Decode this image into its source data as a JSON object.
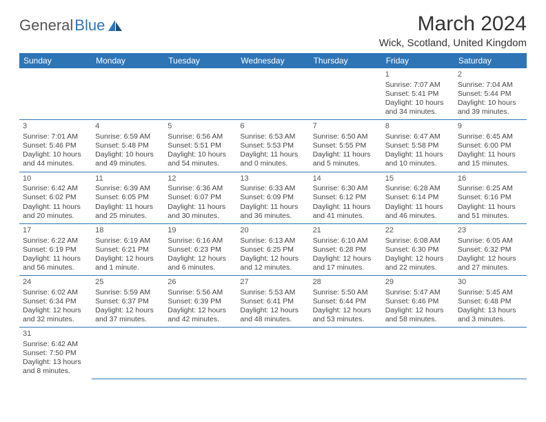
{
  "logo": {
    "gray": "General",
    "blue": "Blue"
  },
  "title": "March 2024",
  "location": "Wick, Scotland, United Kingdom",
  "colors": {
    "header_bg": "#2e75b6",
    "header_text": "#ffffff",
    "border": "#2e75b6",
    "text": "#444444",
    "brand_gray": "#555555",
    "brand_blue": "#2e75b6",
    "background": "#ffffff"
  },
  "dayHeaders": [
    "Sunday",
    "Monday",
    "Tuesday",
    "Wednesday",
    "Thursday",
    "Friday",
    "Saturday"
  ],
  "weeks": [
    [
      null,
      null,
      null,
      null,
      null,
      {
        "n": "1",
        "sr": "Sunrise: 7:07 AM",
        "ss": "Sunset: 5:41 PM",
        "dl1": "Daylight: 10 hours",
        "dl2": "and 34 minutes."
      },
      {
        "n": "2",
        "sr": "Sunrise: 7:04 AM",
        "ss": "Sunset: 5:44 PM",
        "dl1": "Daylight: 10 hours",
        "dl2": "and 39 minutes."
      }
    ],
    [
      {
        "n": "3",
        "sr": "Sunrise: 7:01 AM",
        "ss": "Sunset: 5:46 PM",
        "dl1": "Daylight: 10 hours",
        "dl2": "and 44 minutes."
      },
      {
        "n": "4",
        "sr": "Sunrise: 6:59 AM",
        "ss": "Sunset: 5:48 PM",
        "dl1": "Daylight: 10 hours",
        "dl2": "and 49 minutes."
      },
      {
        "n": "5",
        "sr": "Sunrise: 6:56 AM",
        "ss": "Sunset: 5:51 PM",
        "dl1": "Daylight: 10 hours",
        "dl2": "and 54 minutes."
      },
      {
        "n": "6",
        "sr": "Sunrise: 6:53 AM",
        "ss": "Sunset: 5:53 PM",
        "dl1": "Daylight: 11 hours",
        "dl2": "and 0 minutes."
      },
      {
        "n": "7",
        "sr": "Sunrise: 6:50 AM",
        "ss": "Sunset: 5:55 PM",
        "dl1": "Daylight: 11 hours",
        "dl2": "and 5 minutes."
      },
      {
        "n": "8",
        "sr": "Sunrise: 6:47 AM",
        "ss": "Sunset: 5:58 PM",
        "dl1": "Daylight: 11 hours",
        "dl2": "and 10 minutes."
      },
      {
        "n": "9",
        "sr": "Sunrise: 6:45 AM",
        "ss": "Sunset: 6:00 PM",
        "dl1": "Daylight: 11 hours",
        "dl2": "and 15 minutes."
      }
    ],
    [
      {
        "n": "10",
        "sr": "Sunrise: 6:42 AM",
        "ss": "Sunset: 6:02 PM",
        "dl1": "Daylight: 11 hours",
        "dl2": "and 20 minutes."
      },
      {
        "n": "11",
        "sr": "Sunrise: 6:39 AM",
        "ss": "Sunset: 6:05 PM",
        "dl1": "Daylight: 11 hours",
        "dl2": "and 25 minutes."
      },
      {
        "n": "12",
        "sr": "Sunrise: 6:36 AM",
        "ss": "Sunset: 6:07 PM",
        "dl1": "Daylight: 11 hours",
        "dl2": "and 30 minutes."
      },
      {
        "n": "13",
        "sr": "Sunrise: 6:33 AM",
        "ss": "Sunset: 6:09 PM",
        "dl1": "Daylight: 11 hours",
        "dl2": "and 36 minutes."
      },
      {
        "n": "14",
        "sr": "Sunrise: 6:30 AM",
        "ss": "Sunset: 6:12 PM",
        "dl1": "Daylight: 11 hours",
        "dl2": "and 41 minutes."
      },
      {
        "n": "15",
        "sr": "Sunrise: 6:28 AM",
        "ss": "Sunset: 6:14 PM",
        "dl1": "Daylight: 11 hours",
        "dl2": "and 46 minutes."
      },
      {
        "n": "16",
        "sr": "Sunrise: 6:25 AM",
        "ss": "Sunset: 6:16 PM",
        "dl1": "Daylight: 11 hours",
        "dl2": "and 51 minutes."
      }
    ],
    [
      {
        "n": "17",
        "sr": "Sunrise: 6:22 AM",
        "ss": "Sunset: 6:19 PM",
        "dl1": "Daylight: 11 hours",
        "dl2": "and 56 minutes."
      },
      {
        "n": "18",
        "sr": "Sunrise: 6:19 AM",
        "ss": "Sunset: 6:21 PM",
        "dl1": "Daylight: 12 hours",
        "dl2": "and 1 minute."
      },
      {
        "n": "19",
        "sr": "Sunrise: 6:16 AM",
        "ss": "Sunset: 6:23 PM",
        "dl1": "Daylight: 12 hours",
        "dl2": "and 6 minutes."
      },
      {
        "n": "20",
        "sr": "Sunrise: 6:13 AM",
        "ss": "Sunset: 6:25 PM",
        "dl1": "Daylight: 12 hours",
        "dl2": "and 12 minutes."
      },
      {
        "n": "21",
        "sr": "Sunrise: 6:10 AM",
        "ss": "Sunset: 6:28 PM",
        "dl1": "Daylight: 12 hours",
        "dl2": "and 17 minutes."
      },
      {
        "n": "22",
        "sr": "Sunrise: 6:08 AM",
        "ss": "Sunset: 6:30 PM",
        "dl1": "Daylight: 12 hours",
        "dl2": "and 22 minutes."
      },
      {
        "n": "23",
        "sr": "Sunrise: 6:05 AM",
        "ss": "Sunset: 6:32 PM",
        "dl1": "Daylight: 12 hours",
        "dl2": "and 27 minutes."
      }
    ],
    [
      {
        "n": "24",
        "sr": "Sunrise: 6:02 AM",
        "ss": "Sunset: 6:34 PM",
        "dl1": "Daylight: 12 hours",
        "dl2": "and 32 minutes."
      },
      {
        "n": "25",
        "sr": "Sunrise: 5:59 AM",
        "ss": "Sunset: 6:37 PM",
        "dl1": "Daylight: 12 hours",
        "dl2": "and 37 minutes."
      },
      {
        "n": "26",
        "sr": "Sunrise: 5:56 AM",
        "ss": "Sunset: 6:39 PM",
        "dl1": "Daylight: 12 hours",
        "dl2": "and 42 minutes."
      },
      {
        "n": "27",
        "sr": "Sunrise: 5:53 AM",
        "ss": "Sunset: 6:41 PM",
        "dl1": "Daylight: 12 hours",
        "dl2": "and 48 minutes."
      },
      {
        "n": "28",
        "sr": "Sunrise: 5:50 AM",
        "ss": "Sunset: 6:44 PM",
        "dl1": "Daylight: 12 hours",
        "dl2": "and 53 minutes."
      },
      {
        "n": "29",
        "sr": "Sunrise: 5:47 AM",
        "ss": "Sunset: 6:46 PM",
        "dl1": "Daylight: 12 hours",
        "dl2": "and 58 minutes."
      },
      {
        "n": "30",
        "sr": "Sunrise: 5:45 AM",
        "ss": "Sunset: 6:48 PM",
        "dl1": "Daylight: 13 hours",
        "dl2": "and 3 minutes."
      }
    ],
    [
      {
        "n": "31",
        "sr": "Sunrise: 6:42 AM",
        "ss": "Sunset: 7:50 PM",
        "dl1": "Daylight: 13 hours",
        "dl2": "and 8 minutes."
      },
      null,
      null,
      null,
      null,
      null,
      null
    ]
  ]
}
